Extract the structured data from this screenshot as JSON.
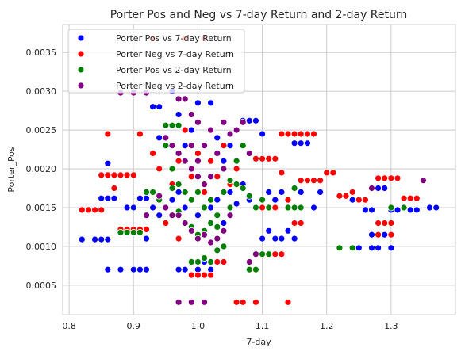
{
  "chart_data": {
    "type": "scatter",
    "title": "Porter Pos and Neg vs 7-day Return and 2-day Return",
    "xlabel": "7-day",
    "ylabel": "Porter_Pos",
    "xlim": [
      0.79,
      1.4
    ],
    "ylim": [
      0.00012,
      0.00386
    ],
    "x_ticks": [
      0.8,
      0.9,
      1.0,
      1.1,
      1.2,
      1.3
    ],
    "x_tick_labels": [
      "0.8",
      "0.9",
      "1.0",
      "1.1",
      "1.2",
      "1.3"
    ],
    "y_ticks": [
      0.0005,
      0.001,
      0.0015,
      0.002,
      0.0025,
      0.003,
      0.0035
    ],
    "y_tick_labels": [
      "0.0005",
      "0.0010",
      "0.0015",
      "0.0020",
      "0.0025",
      "0.0030",
      "0.0035"
    ],
    "grid": true,
    "legend_position": "top-left",
    "series": [
      {
        "name": "Porter Pos vs 7-day Return",
        "color": "#0000ff",
        "points": [
          [
            0.82,
            0.00109
          ],
          [
            0.84,
            0.00109
          ],
          [
            0.85,
            0.00109
          ],
          [
            0.86,
            0.00109
          ],
          [
            0.85,
            0.00162
          ],
          [
            0.86,
            0.00162
          ],
          [
            0.87,
            0.00162
          ],
          [
            0.86,
            0.0007
          ],
          [
            0.88,
            0.0007
          ],
          [
            0.9,
            0.0007
          ],
          [
            0.91,
            0.0007
          ],
          [
            0.92,
            0.0007
          ],
          [
            0.86,
            0.00207
          ],
          [
            0.89,
            0.0015
          ],
          [
            0.9,
            0.0015
          ],
          [
            0.91,
            0.00162
          ],
          [
            0.92,
            0.00162
          ],
          [
            0.93,
            0.0028
          ],
          [
            0.94,
            0.0028
          ],
          [
            0.95,
            0.0024
          ],
          [
            0.96,
            0.003
          ],
          [
            0.97,
            0.0027
          ],
          [
            0.98,
            0.0023
          ],
          [
            0.99,
            0.0025
          ],
          [
            0.93,
            0.0015
          ],
          [
            0.94,
            0.0014
          ],
          [
            0.95,
            0.0013
          ],
          [
            0.96,
            0.0016
          ],
          [
            0.97,
            0.0017
          ],
          [
            0.98,
            0.0015
          ],
          [
            0.99,
            0.0016
          ],
          [
            1.0,
            0.0014
          ],
          [
            1.01,
            0.0017
          ],
          [
            1.02,
            0.0015
          ],
          [
            1.03,
            0.0016
          ],
          [
            1.04,
            0.0013
          ],
          [
            1.05,
            0.0017
          ],
          [
            1.06,
            0.00155
          ],
          [
            0.97,
            0.0007
          ],
          [
            0.98,
            0.0007
          ],
          [
            0.99,
            0.0008
          ],
          [
            1.0,
            0.0007
          ],
          [
            1.01,
            0.0008
          ],
          [
            1.02,
            0.0007
          ],
          [
            1.03,
            0.0008
          ],
          [
            1.0,
            0.00285
          ],
          [
            1.02,
            0.00285
          ],
          [
            1.03,
            0.0024
          ],
          [
            1.04,
            0.0021
          ],
          [
            1.05,
            0.0023
          ],
          [
            1.06,
            0.002
          ],
          [
            1.07,
            0.00262
          ],
          [
            1.08,
            0.00262
          ],
          [
            1.09,
            0.00262
          ],
          [
            1.1,
            0.00245
          ],
          [
            1.11,
            0.0017
          ],
          [
            1.12,
            0.0016
          ],
          [
            1.13,
            0.0017
          ],
          [
            1.14,
            0.0016
          ],
          [
            1.1,
            0.0011
          ],
          [
            1.11,
            0.0012
          ],
          [
            1.12,
            0.0011
          ],
          [
            1.13,
            0.0011
          ],
          [
            1.14,
            0.0012
          ],
          [
            1.15,
            0.0011
          ],
          [
            1.15,
            0.00233
          ],
          [
            1.16,
            0.00233
          ],
          [
            1.17,
            0.00233
          ],
          [
            1.18,
            0.0015
          ],
          [
            1.16,
            0.0017
          ],
          [
            1.15,
            0.0015
          ],
          [
            1.25,
            0.00098
          ],
          [
            1.27,
            0.00098
          ],
          [
            1.28,
            0.00098
          ],
          [
            1.3,
            0.00098
          ],
          [
            1.27,
            0.00115
          ],
          [
            1.28,
            0.00115
          ],
          [
            1.29,
            0.00115
          ],
          [
            1.26,
            0.00147
          ],
          [
            1.27,
            0.00147
          ],
          [
            1.3,
            0.00147
          ],
          [
            1.31,
            0.00147
          ],
          [
            1.33,
            0.00147
          ],
          [
            1.34,
            0.00147
          ],
          [
            1.27,
            0.00175
          ],
          [
            1.28,
            0.00175
          ],
          [
            1.29,
            0.00175
          ],
          [
            1.24,
            0.0016
          ],
          [
            1.36,
            0.0015
          ],
          [
            1.37,
            0.0015
          ],
          [
            1.19,
            0.0017
          ],
          [
            1.07,
            0.0018
          ],
          [
            1.08,
            0.0016
          ],
          [
            0.94,
            0.0024
          ],
          [
            0.92,
            0.0011
          ],
          [
            0.9,
            0.0012
          ]
        ]
      },
      {
        "name": "Porter Neg vs 7-day Return",
        "color": "#ff0000",
        "points": [
          [
            0.82,
            0.00147
          ],
          [
            0.83,
            0.00147
          ],
          [
            0.84,
            0.00147
          ],
          [
            0.85,
            0.00147
          ],
          [
            0.85,
            0.00192
          ],
          [
            0.86,
            0.00192
          ],
          [
            0.87,
            0.00192
          ],
          [
            0.88,
            0.00192
          ],
          [
            0.89,
            0.00192
          ],
          [
            0.9,
            0.00192
          ],
          [
            0.86,
            0.00245
          ],
          [
            0.87,
            0.00175
          ],
          [
            0.88,
            0.00122
          ],
          [
            0.89,
            0.00122
          ],
          [
            0.9,
            0.00122
          ],
          [
            0.91,
            0.00122
          ],
          [
            0.92,
            0.00122
          ],
          [
            0.91,
            0.00245
          ],
          [
            0.93,
            0.00368
          ],
          [
            0.98,
            0.00368
          ],
          [
            1.01,
            0.00368
          ],
          [
            0.93,
            0.0022
          ],
          [
            0.94,
            0.002
          ],
          [
            0.95,
            0.0023
          ],
          [
            0.96,
            0.0018
          ],
          [
            0.97,
            0.0021
          ],
          [
            0.98,
            0.0025
          ],
          [
            0.99,
            0.0019
          ],
          [
            1.0,
            0.0022
          ],
          [
            1.01,
            0.0017
          ],
          [
            1.02,
            0.0021
          ],
          [
            1.03,
            0.0019
          ],
          [
            1.04,
            0.0023
          ],
          [
            1.05,
            0.0018
          ],
          [
            1.06,
            0.002
          ],
          [
            0.99,
            0.00063
          ],
          [
            1.0,
            0.00063
          ],
          [
            1.01,
            0.00063
          ],
          [
            1.02,
            0.00063
          ],
          [
            1.03,
            0.0008
          ],
          [
            1.04,
            0.0008
          ],
          [
            1.06,
            0.00028
          ],
          [
            1.07,
            0.00028
          ],
          [
            1.09,
            0.00028
          ],
          [
            1.14,
            0.00028
          ],
          [
            1.09,
            0.00213
          ],
          [
            1.1,
            0.00213
          ],
          [
            1.11,
            0.00213
          ],
          [
            1.12,
            0.00213
          ],
          [
            1.13,
            0.00245
          ],
          [
            1.14,
            0.00245
          ],
          [
            1.15,
            0.00245
          ],
          [
            1.16,
            0.00245
          ],
          [
            1.17,
            0.00245
          ],
          [
            1.18,
            0.00245
          ],
          [
            1.13,
            0.00195
          ],
          [
            1.14,
            0.0016
          ],
          [
            1.16,
            0.00185
          ],
          [
            1.17,
            0.00185
          ],
          [
            1.18,
            0.00185
          ],
          [
            1.19,
            0.00185
          ],
          [
            1.2,
            0.00195
          ],
          [
            1.21,
            0.00195
          ],
          [
            1.22,
            0.00165
          ],
          [
            1.23,
            0.00165
          ],
          [
            1.24,
            0.0017
          ],
          [
            1.25,
            0.0016
          ],
          [
            1.26,
            0.0016
          ],
          [
            1.28,
            0.00188
          ],
          [
            1.29,
            0.00188
          ],
          [
            1.3,
            0.00188
          ],
          [
            1.31,
            0.00188
          ],
          [
            1.28,
            0.0013
          ],
          [
            1.29,
            0.0013
          ],
          [
            1.3,
            0.0013
          ],
          [
            1.32,
            0.00162
          ],
          [
            1.33,
            0.00162
          ],
          [
            1.34,
            0.00162
          ],
          [
            1.28,
            0.00115
          ],
          [
            1.3,
            0.00115
          ],
          [
            1.1,
            0.0015
          ],
          [
            1.11,
            0.0015
          ],
          [
            1.12,
            0.0015
          ],
          [
            1.15,
            0.0013
          ],
          [
            1.16,
            0.0013
          ],
          [
            1.13,
            0.0009
          ],
          [
            1.12,
            0.0009
          ],
          [
            0.95,
            0.0013
          ],
          [
            0.97,
            0.0011
          ]
        ]
      },
      {
        "name": "Porter Pos vs 2-day Return",
        "color": "#008000",
        "points": [
          [
            0.88,
            0.00118
          ],
          [
            0.89,
            0.00118
          ],
          [
            0.9,
            0.00118
          ],
          [
            0.91,
            0.00118
          ],
          [
            0.92,
            0.0017
          ],
          [
            0.93,
            0.0017
          ],
          [
            0.94,
            0.0016
          ],
          [
            0.95,
            0.00256
          ],
          [
            0.96,
            0.00256
          ],
          [
            0.97,
            0.00256
          ],
          [
            0.95,
            0.0023
          ],
          [
            0.96,
            0.002
          ],
          [
            0.97,
            0.0018
          ],
          [
            0.98,
            0.0017
          ],
          [
            0.99,
            0.0016
          ],
          [
            1.0,
            0.0017
          ],
          [
            1.01,
            0.0015
          ],
          [
            1.02,
            0.0016
          ],
          [
            1.03,
            0.0014
          ],
          [
            1.04,
            0.0017
          ],
          [
            1.05,
            0.0015
          ],
          [
            0.97,
            0.00145
          ],
          [
            0.98,
            0.0013
          ],
          [
            0.99,
            0.00125
          ],
          [
            1.0,
            0.00115
          ],
          [
            1.01,
            0.0012
          ],
          [
            1.02,
            0.0013
          ],
          [
            1.03,
            0.00125
          ],
          [
            0.99,
            0.0008
          ],
          [
            1.0,
            0.0008
          ],
          [
            1.01,
            0.00085
          ],
          [
            1.02,
            0.0008
          ],
          [
            1.03,
            0.00095
          ],
          [
            1.04,
            0.001
          ],
          [
            1.05,
            0.00185
          ],
          [
            1.06,
            0.0018
          ],
          [
            1.07,
            0.00175
          ],
          [
            1.08,
            0.00165
          ],
          [
            1.09,
            0.0015
          ],
          [
            1.1,
            0.0016
          ],
          [
            1.11,
            0.0015
          ],
          [
            1.08,
            0.0007
          ],
          [
            1.09,
            0.0007
          ],
          [
            1.1,
            0.0009
          ],
          [
            1.11,
            0.0009
          ],
          [
            1.14,
            0.0015
          ],
          [
            1.15,
            0.0015
          ],
          [
            1.16,
            0.0015
          ],
          [
            1.15,
            0.00175
          ],
          [
            1.22,
            0.00098
          ],
          [
            1.24,
            0.00098
          ],
          [
            1.3,
            0.0015
          ],
          [
            1.32,
            0.0015
          ],
          [
            1.05,
            0.0014
          ],
          [
            0.96,
            0.00175
          ],
          [
            1.06,
            0.0021
          ],
          [
            1.07,
            0.0023
          ]
        ]
      },
      {
        "name": "Porter Neg vs 2-day Return",
        "color": "#800080",
        "points": [
          [
            0.88,
            0.00298
          ],
          [
            0.9,
            0.00298
          ],
          [
            0.92,
            0.00298
          ],
          [
            0.97,
            0.0029
          ],
          [
            0.98,
            0.0029
          ],
          [
            0.99,
            0.0027
          ],
          [
            1.0,
            0.0026
          ],
          [
            0.95,
            0.0024
          ],
          [
            0.96,
            0.0023
          ],
          [
            0.97,
            0.0022
          ],
          [
            0.98,
            0.0021
          ],
          [
            0.99,
            0.002
          ],
          [
            1.0,
            0.0021
          ],
          [
            1.01,
            0.0023
          ],
          [
            1.02,
            0.0025
          ],
          [
            1.03,
            0.0022
          ],
          [
            1.04,
            0.002
          ],
          [
            1.02,
            0.0019
          ],
          [
            1.01,
            0.0018
          ],
          [
            1.0,
            0.0019
          ],
          [
            0.99,
            0.0023
          ],
          [
            0.94,
            0.00165
          ],
          [
            0.95,
            0.0015
          ],
          [
            0.96,
            0.0014
          ],
          [
            0.97,
            0.0014
          ],
          [
            0.98,
            0.0013
          ],
          [
            0.99,
            0.0012
          ],
          [
            1.0,
            0.0011
          ],
          [
            1.01,
            0.00115
          ],
          [
            1.02,
            0.00105
          ],
          [
            1.03,
            0.0011
          ],
          [
            1.04,
            0.0012
          ],
          [
            1.05,
            0.0014
          ],
          [
            0.97,
            0.00028
          ],
          [
            0.99,
            0.00028
          ],
          [
            1.01,
            0.00028
          ],
          [
            1.06,
            0.0025
          ],
          [
            1.07,
            0.0026
          ],
          [
            1.08,
            0.0022
          ],
          [
            1.04,
            0.0026
          ],
          [
            1.05,
            0.00245
          ],
          [
            1.27,
            0.00175
          ],
          [
            1.35,
            0.00185
          ],
          [
            1.08,
            0.0008
          ],
          [
            1.09,
            0.0009
          ],
          [
            0.92,
            0.0014
          ]
        ]
      }
    ]
  }
}
